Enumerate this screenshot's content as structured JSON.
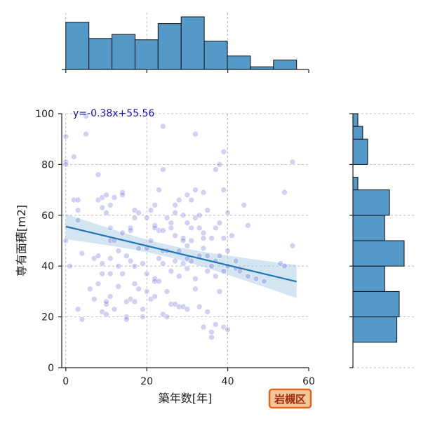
{
  "chart_data": {
    "type": "scatter",
    "title": "",
    "xlabel": "築年数[年]",
    "ylabel": "専有面積[m2]",
    "xlim": [
      -1,
      60
    ],
    "ylim": [
      0,
      100
    ],
    "x_ticks": [
      0,
      20,
      40,
      60
    ],
    "y_ticks": [
      0,
      20,
      40,
      60,
      80,
      100
    ],
    "grid": true,
    "equation": "y=-0.38x+55.56",
    "badge": "岩槻区",
    "regression": {
      "slope": -0.38,
      "intercept": 55.56,
      "x_range": [
        0,
        57
      ]
    },
    "points": [
      [
        0,
        91
      ],
      [
        0,
        81
      ],
      [
        0,
        80
      ],
      [
        0,
        50
      ],
      [
        1,
        40
      ],
      [
        2,
        83
      ],
      [
        2,
        66
      ],
      [
        3,
        66
      ],
      [
        3,
        62
      ],
      [
        3,
        58
      ],
      [
        3,
        23
      ],
      [
        4,
        45
      ],
      [
        4,
        19
      ],
      [
        5,
        92
      ],
      [
        5,
        99
      ],
      [
        6,
        31
      ],
      [
        7,
        43
      ],
      [
        7,
        27
      ],
      [
        8,
        76
      ],
      [
        8,
        66
      ],
      [
        8,
        44
      ],
      [
        8,
        33
      ],
      [
        9,
        67
      ],
      [
        9,
        63
      ],
      [
        9,
        41
      ],
      [
        9,
        37
      ],
      [
        9,
        22
      ],
      [
        10,
        68
      ],
      [
        10,
        61
      ],
      [
        10,
        25
      ],
      [
        10,
        26
      ],
      [
        10,
        21
      ],
      [
        11,
        64
      ],
      [
        11,
        55
      ],
      [
        11,
        50
      ],
      [
        11,
        43
      ],
      [
        11,
        28
      ],
      [
        11,
        37
      ],
      [
        12,
        67
      ],
      [
        12,
        50
      ],
      [
        12,
        23
      ],
      [
        13,
        46
      ],
      [
        13,
        40
      ],
      [
        13,
        32
      ],
      [
        14,
        69
      ],
      [
        14,
        68
      ],
      [
        14,
        53
      ],
      [
        14,
        37
      ],
      [
        15,
        44
      ],
      [
        15,
        26
      ],
      [
        15,
        20
      ],
      [
        15,
        19
      ],
      [
        16,
        55
      ],
      [
        16,
        54
      ],
      [
        16,
        42
      ],
      [
        16,
        27
      ],
      [
        17,
        62
      ],
      [
        17,
        59
      ],
      [
        17,
        40
      ],
      [
        17,
        33
      ],
      [
        17,
        26
      ],
      [
        18,
        61
      ],
      [
        18,
        47
      ],
      [
        18,
        31
      ],
      [
        19,
        41
      ],
      [
        19,
        23
      ],
      [
        19,
        20
      ],
      [
        20,
        59
      ],
      [
        20,
        47
      ],
      [
        20,
        37
      ],
      [
        20,
        30
      ],
      [
        21,
        62
      ],
      [
        21,
        50
      ],
      [
        21,
        27
      ],
      [
        22,
        64
      ],
      [
        22,
        56
      ],
      [
        22,
        55
      ],
      [
        22,
        35
      ],
      [
        22,
        34
      ],
      [
        22,
        28
      ],
      [
        23,
        70
      ],
      [
        23,
        54
      ],
      [
        23,
        43
      ],
      [
        23,
        34
      ],
      [
        24,
        95
      ],
      [
        24,
        78
      ],
      [
        24,
        54
      ],
      [
        24,
        46
      ],
      [
        24,
        41
      ],
      [
        24,
        21
      ],
      [
        25,
        59
      ],
      [
        25,
        46
      ],
      [
        25,
        30
      ],
      [
        25,
        20
      ],
      [
        26,
        57
      ],
      [
        26,
        55
      ],
      [
        26,
        38
      ],
      [
        26,
        25
      ],
      [
        27,
        64
      ],
      [
        27,
        52
      ],
      [
        27,
        42
      ],
      [
        27,
        25
      ],
      [
        28,
        66
      ],
      [
        28,
        46
      ],
      [
        28,
        36
      ],
      [
        28,
        24
      ],
      [
        29,
        60
      ],
      [
        29,
        51
      ],
      [
        29,
        41
      ],
      [
        29,
        24
      ],
      [
        30,
        68
      ],
      [
        30,
        57
      ],
      [
        30,
        48
      ],
      [
        30,
        39
      ],
      [
        30,
        23
      ],
      [
        31,
        66
      ],
      [
        31,
        50
      ],
      [
        31,
        42
      ],
      [
        32,
        92
      ],
      [
        32,
        70
      ],
      [
        32,
        59
      ],
      [
        32,
        35
      ],
      [
        32,
        31
      ],
      [
        33,
        60
      ],
      [
        33,
        55
      ],
      [
        33,
        44
      ],
      [
        33,
        24
      ],
      [
        34,
        69
      ],
      [
        34,
        53
      ],
      [
        34,
        51
      ],
      [
        34,
        47
      ],
      [
        34,
        16
      ],
      [
        35,
        62
      ],
      [
        35,
        44
      ],
      [
        35,
        38
      ],
      [
        35,
        22
      ],
      [
        36,
        51
      ],
      [
        36,
        40
      ],
      [
        36,
        12
      ],
      [
        36,
        14
      ],
      [
        37,
        78
      ],
      [
        37,
        55
      ],
      [
        37,
        42
      ],
      [
        37,
        36
      ],
      [
        37,
        17
      ],
      [
        38,
        80
      ],
      [
        38,
        57
      ],
      [
        38,
        44
      ],
      [
        38,
        30
      ],
      [
        39,
        85
      ],
      [
        39,
        70
      ],
      [
        39,
        51
      ],
      [
        39,
        38
      ],
      [
        39,
        16
      ],
      [
        40,
        61
      ],
      [
        40,
        46
      ],
      [
        40,
        40
      ],
      [
        40,
        15
      ],
      [
        41,
        52
      ],
      [
        42,
        42
      ],
      [
        42,
        39
      ],
      [
        43,
        38
      ],
      [
        44,
        64
      ],
      [
        45,
        56
      ],
      [
        45,
        36
      ],
      [
        47,
        35
      ],
      [
        49,
        34
      ],
      [
        53,
        41
      ],
      [
        54,
        69
      ],
      [
        54,
        40
      ],
      [
        56,
        81
      ],
      [
        56,
        48
      ],
      [
        30,
        43
      ],
      [
        31,
        55
      ],
      [
        29,
        50
      ],
      [
        27,
        61
      ]
    ],
    "top_histogram": {
      "bin_edges": [
        0,
        5.7,
        11.4,
        17.1,
        22.8,
        28.5,
        34.2,
        39.9,
        45.6,
        51.3,
        57
      ],
      "counts": [
        35,
        23,
        26,
        22,
        34,
        39,
        21,
        10,
        2,
        7
      ]
    },
    "right_histogram": {
      "bin_edges": [
        10,
        20,
        30,
        40,
        50,
        60,
        70,
        75,
        80,
        90,
        95,
        100
      ],
      "counts": [
        18,
        19,
        13,
        21,
        13,
        15,
        2,
        0,
        6,
        4,
        2
      ]
    }
  }
}
